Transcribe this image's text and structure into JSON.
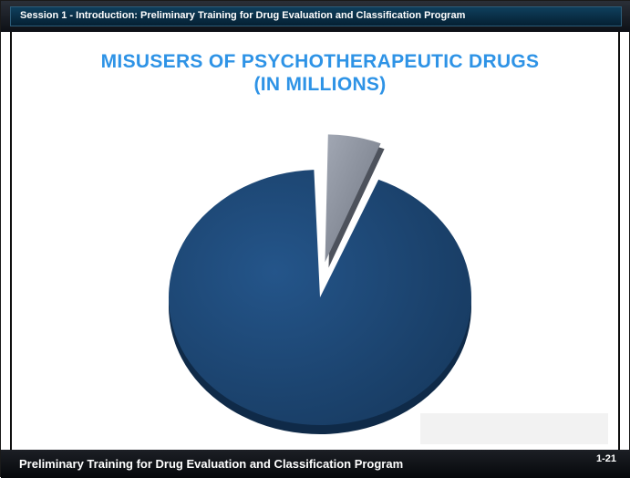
{
  "header": {
    "title": "Session 1 - Introduction: Preliminary Training for Drug Evaluation and Classification Program"
  },
  "footer": {
    "title": "Preliminary Training for Drug Evaluation and Classification Program",
    "page": "1-21"
  },
  "colors": {
    "title": "#2e93e6",
    "main_slice": "#1e4773",
    "small_slice": "#8a909c"
  },
  "chart_data": {
    "type": "pie",
    "title": [
      "MISUSERS OF PSYCHOTHERAPEUTIC DRUGS",
      "(IN MILLIONS)"
    ],
    "slices": [
      {
        "value": 94,
        "color": "#1e4773",
        "exploded": false
      },
      {
        "value": 6,
        "color": "#8a909c",
        "exploded": true
      }
    ],
    "style": "3d-exploded"
  }
}
